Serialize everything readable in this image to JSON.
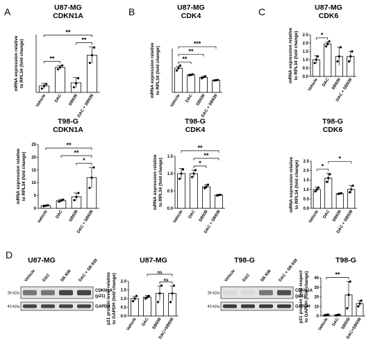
{
  "panels": [
    {
      "letter": "A"
    },
    {
      "letter": "B"
    },
    {
      "letter": "C"
    },
    {
      "letter": "D"
    }
  ],
  "chart_data": [
    {
      "type": "bar",
      "panel": "A",
      "cell_line": "U87-MG",
      "gene": "CDKN1A",
      "ylabel": "mRNA expression relative to RPL34 (fold change)",
      "categories": [
        "Vehicle",
        "DAC",
        "SB939",
        "DAC + SB939"
      ],
      "values": [
        1.0,
        3.9,
        1.5,
        5.8
      ],
      "errors": [
        0.4,
        0.3,
        0.8,
        1.3
      ],
      "points": [
        [
          0.6,
          1.0,
          1.3
        ],
        [
          3.6,
          3.9,
          4.2
        ],
        [
          0.8,
          1.4,
          2.2
        ],
        [
          4.6,
          5.8,
          7.0
        ]
      ],
      "ylim": [
        0,
        9
      ],
      "yticks": [],
      "significance": [
        {
          "from": 0,
          "to": 1,
          "label": "**"
        },
        {
          "from": 0,
          "to": 3,
          "label": "**"
        },
        {
          "from": 2,
          "to": 3,
          "label": "**"
        }
      ]
    },
    {
      "type": "bar",
      "panel": "B",
      "cell_line": "U87-MG",
      "gene": "CDK4",
      "ylabel": "mRNA expression relative to RPL34 (fold change)",
      "categories": [
        "Vehicle",
        "DAC",
        "SB939",
        "DAC + SB939"
      ],
      "values": [
        1.0,
        0.72,
        0.62,
        0.5
      ],
      "errors": [
        0.08,
        0.03,
        0.04,
        0.01
      ],
      "points": [
        [
          0.9,
          1.0,
          1.1
        ],
        [
          0.7,
          0.72,
          0.74
        ],
        [
          0.58,
          0.62,
          0.66
        ],
        [
          0.49,
          0.5,
          0.51
        ]
      ],
      "ylim": [
        0,
        1.8
      ],
      "yticks": [],
      "significance": [
        {
          "from": 0,
          "to": 1,
          "label": "**"
        },
        {
          "from": 0,
          "to": 2,
          "label": "**"
        },
        {
          "from": 0,
          "to": 3,
          "label": "***"
        }
      ]
    },
    {
      "type": "bar",
      "panel": "C",
      "cell_line": "U87-MG",
      "gene": "CDK6",
      "ylabel": "mRNA expression relative to RPL34 (fold change)",
      "categories": [
        "Vehicle",
        "DAC",
        "SB939",
        "DAC + SB939"
      ],
      "values": [
        1.0,
        1.95,
        1.2,
        1.2
      ],
      "errors": [
        0.25,
        0.12,
        0.55,
        0.3
      ],
      "points": [
        [
          0.8,
          1.0,
          1.2
        ],
        [
          1.8,
          1.95,
          2.1
        ],
        [
          0.9,
          1.2,
          1.75
        ],
        [
          0.9,
          1.2,
          1.5
        ]
      ],
      "ylim": [
        0,
        2.5
      ],
      "yticks": [
        "0.0",
        "0.5",
        "1.0",
        "1.5",
        "2.0",
        "2.5"
      ],
      "significance": [
        {
          "from": 0,
          "to": 1,
          "label": "*"
        }
      ]
    },
    {
      "type": "bar",
      "panel": "A",
      "cell_line": "T98-G",
      "gene": "CDKN1A",
      "ylabel": "mRNA expression relative to RPL34 (fold change)",
      "categories": [
        "Vehicle",
        "DAC",
        "SB939",
        "DAC + SB939"
      ],
      "values": [
        1.0,
        3.0,
        4.5,
        12.0
      ],
      "errors": [
        0.3,
        0.5,
        1.5,
        4.0
      ],
      "points": [
        [
          0.8,
          1.0,
          1.2
        ],
        [
          2.6,
          3.0,
          3.4
        ],
        [
          3.2,
          4.5,
          6.0
        ],
        [
          8.0,
          12.0,
          16.0
        ]
      ],
      "ylim": [
        0,
        25
      ],
      "yticks": [
        "0",
        "5",
        "10",
        "15",
        "20",
        "25"
      ],
      "significance": [
        {
          "from": 0,
          "to": 3,
          "label": "**"
        },
        {
          "from": 1,
          "to": 3,
          "label": "**"
        },
        {
          "from": 2,
          "to": 3,
          "label": "*"
        }
      ]
    },
    {
      "type": "bar",
      "panel": "B",
      "cell_line": "T98-G",
      "gene": "CDK4",
      "ylabel": "mRNA expression relative to RPL34 (fold change)",
      "categories": [
        "Vehicle",
        "DAC",
        "SB939",
        "DAC + SB939"
      ],
      "values": [
        1.0,
        1.0,
        0.62,
        0.38
      ],
      "errors": [
        0.15,
        0.1,
        0.06,
        0.02
      ],
      "points": [
        [
          0.85,
          1.0,
          1.12
        ],
        [
          0.9,
          1.0,
          1.1
        ],
        [
          0.58,
          0.62,
          0.68
        ],
        [
          0.37,
          0.38,
          0.39
        ]
      ],
      "ylim": [
        0,
        1.5
      ],
      "yticks": [
        "0.0",
        "0.5",
        "1.0",
        "1.5"
      ],
      "significance": [
        {
          "from": 0,
          "to": 3,
          "label": "**"
        },
        {
          "from": 1,
          "to": 3,
          "label": "**"
        },
        {
          "from": 1,
          "to": 2,
          "label": "*"
        }
      ]
    },
    {
      "type": "bar",
      "panel": "C",
      "cell_line": "T98-G",
      "gene": "CDK6",
      "ylabel": "mRNA expression relative to RPL34 (fold change)",
      "categories": [
        "Vehicle",
        "DAC",
        "SB939",
        "DAC + SB939"
      ],
      "values": [
        1.0,
        1.6,
        0.78,
        1.0
      ],
      "errors": [
        0.12,
        0.25,
        0.03,
        0.2
      ],
      "points": [
        [
          0.9,
          1.0,
          1.1
        ],
        [
          1.4,
          1.6,
          1.8
        ],
        [
          0.76,
          0.78,
          0.8
        ],
        [
          0.85,
          1.0,
          1.2
        ]
      ],
      "ylim": [
        0,
        2.5
      ],
      "yticks": [
        "0.0",
        "0.5",
        "1.0",
        "1.5",
        "2.0",
        "2.5"
      ],
      "significance": [
        {
          "from": 0,
          "to": 1,
          "label": "*"
        },
        {
          "from": 1,
          "to": 3,
          "label": "*"
        }
      ]
    },
    {
      "type": "bar",
      "panel": "D",
      "cell_line": "U87-MG",
      "gene": "",
      "ylabel": "p21 protein level relative to GAPDH (fold change)",
      "categories": [
        "Vehicle",
        "DAC",
        "SB939",
        "DAC+SB939"
      ],
      "values": [
        1.0,
        1.08,
        1.3,
        1.3
      ],
      "errors": [
        0.12,
        0.1,
        0.42,
        0.42
      ],
      "points": [
        [
          0.85,
          1.0,
          1.15
        ],
        [
          1.0,
          1.08,
          1.15
        ],
        [
          0.8,
          1.3,
          1.75
        ],
        [
          0.8,
          1.3,
          1.75
        ]
      ],
      "ylim": [
        0,
        2.0
      ],
      "yticks": [
        "0.0",
        "0.5",
        "1.0",
        "1.5",
        "2.0"
      ],
      "significance": [
        {
          "from": 1,
          "to": 3,
          "label": "ns"
        },
        {
          "from": 2,
          "to": 3,
          "label": "ns"
        }
      ]
    },
    {
      "type": "bar",
      "panel": "D",
      "cell_line": "T98-G",
      "gene": "",
      "ylabel": "p21 protein level respect to GAPDH (fold change)",
      "categories": [
        "Vehicle",
        "DAC",
        "SB939",
        "DAC+SB939"
      ],
      "values": [
        1.0,
        1.0,
        22.0,
        13.0
      ],
      "errors": [
        0.8,
        0.6,
        14.0,
        3.0
      ],
      "points": [
        [
          0.5,
          1.0,
          1.5
        ],
        [
          0.6,
          1.0,
          1.4
        ],
        [
          8.0,
          22.0,
          36.0
        ],
        [
          10.0,
          13.0,
          16.0
        ]
      ],
      "ylim": [
        0,
        40
      ],
      "yticks": [
        "0",
        "10",
        "20",
        "30",
        "40"
      ],
      "significance": [
        {
          "from": 0,
          "to": 2,
          "label": "**"
        }
      ]
    }
  ],
  "western_blots": [
    {
      "cell_line": "U87-MG",
      "lanes": [
        "Vehicle",
        "DAC",
        "SB 939",
        "DAC + SB 939"
      ],
      "bands": [
        {
          "kda": "26 kDa",
          "protein": "CDKN1A (p21)",
          "intensity": [
            0.55,
            0.55,
            0.8,
            0.8
          ]
        },
        {
          "kda": "43 kDa",
          "protein": "GAPDH",
          "intensity": [
            0.8,
            0.8,
            0.8,
            0.8
          ]
        }
      ]
    },
    {
      "cell_line": "T98-G",
      "lanes": [
        "Vehicle",
        "DAC",
        "SB 939",
        "DAC + SB 939"
      ],
      "bands": [
        {
          "kda": "26 kDa",
          "protein": "CDKN1A (p21)",
          "intensity": [
            0.05,
            0.05,
            0.55,
            0.75
          ]
        },
        {
          "kda": "43 kDa",
          "protein": "GAPDH",
          "intensity": [
            0.85,
            0.85,
            0.85,
            0.85
          ]
        }
      ]
    }
  ]
}
